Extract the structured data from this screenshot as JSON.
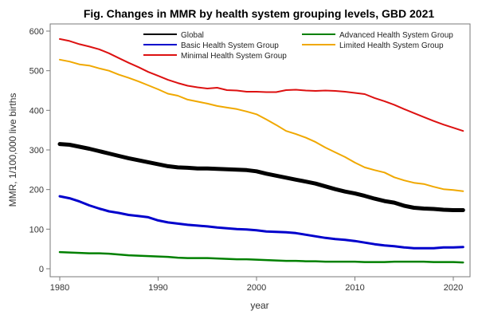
{
  "chart_data": {
    "type": "line",
    "title": "Fig. Changes in MMR by health system grouping levels, GBD 2021",
    "xlabel": "year",
    "ylabel": "MMR, 1/100,000 live births",
    "xlim": [
      1980,
      2021
    ],
    "ylim": [
      0,
      600
    ],
    "xticks": [
      "1980",
      "1990",
      "2000",
      "2010",
      "2020"
    ],
    "yticks": [
      "0",
      "100",
      "200",
      "300",
      "400",
      "500",
      "600"
    ],
    "grid": false,
    "legend_position": "top",
    "x": [
      1980,
      1981,
      1982,
      1983,
      1984,
      1985,
      1986,
      1987,
      1988,
      1989,
      1990,
      1991,
      1992,
      1993,
      1994,
      1995,
      1996,
      1997,
      1998,
      1999,
      2000,
      2001,
      2002,
      2003,
      2004,
      2005,
      2006,
      2007,
      2008,
      2009,
      2010,
      2011,
      2012,
      2013,
      2014,
      2015,
      2016,
      2017,
      2018,
      2019,
      2020,
      2021
    ],
    "series": [
      {
        "name": "Global",
        "color": "#000000",
        "values": [
          315,
          313,
          308,
          303,
          297,
          291,
          285,
          279,
          274,
          269,
          264,
          259,
          256,
          255,
          253,
          253,
          252,
          251,
          250,
          249,
          246,
          240,
          235,
          230,
          225,
          220,
          215,
          208,
          201,
          195,
          190,
          184,
          177,
          171,
          167,
          159,
          154,
          152,
          151,
          149,
          148,
          148
        ]
      },
      {
        "name": "Advanced Health System Group",
        "color": "#008000",
        "values": [
          42,
          41,
          40,
          39,
          39,
          38,
          36,
          34,
          33,
          32,
          31,
          30,
          28,
          27,
          27,
          27,
          26,
          25,
          24,
          24,
          23,
          22,
          21,
          20,
          20,
          19,
          19,
          18,
          18,
          18,
          18,
          17,
          17,
          17,
          18,
          18,
          18,
          18,
          17,
          17,
          17,
          16
        ]
      },
      {
        "name": "Basic Health System Group",
        "color": "#0000cc",
        "values": [
          183,
          178,
          170,
          160,
          152,
          145,
          141,
          136,
          133,
          130,
          122,
          117,
          114,
          111,
          109,
          107,
          104,
          102,
          100,
          99,
          97,
          94,
          93,
          92,
          90,
          86,
          82,
          78,
          75,
          73,
          70,
          66,
          62,
          59,
          57,
          54,
          52,
          52,
          52,
          54,
          54,
          55
        ]
      },
      {
        "name": "Limited Health System Group",
        "color": "#f0a800",
        "values": [
          528,
          523,
          516,
          513,
          506,
          500,
          490,
          482,
          473,
          463,
          453,
          442,
          437,
          427,
          422,
          417,
          411,
          407,
          403,
          397,
          390,
          377,
          363,
          348,
          340,
          331,
          320,
          306,
          294,
          282,
          268,
          256,
          249,
          243,
          231,
          223,
          217,
          214,
          207,
          201,
          199,
          196
        ]
      },
      {
        "name": "Minimal Health System Group",
        "color": "#dd1111",
        "values": [
          580,
          575,
          567,
          561,
          554,
          544,
          532,
          520,
          509,
          497,
          487,
          477,
          469,
          462,
          458,
          455,
          457,
          451,
          450,
          447,
          447,
          446,
          446,
          451,
          452,
          450,
          449,
          450,
          449,
          447,
          444,
          441,
          431,
          423,
          414,
          403,
          393,
          383,
          373,
          364,
          356,
          348
        ]
      }
    ]
  }
}
